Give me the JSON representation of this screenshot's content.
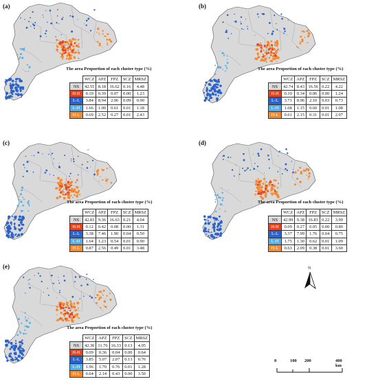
{
  "title": "The area Proportion of each cluster type (%)",
  "columns": [
    "WCZ",
    "APZ",
    "FPZ",
    "SCZ",
    "MRSZ"
  ],
  "colors": {
    "NS": "#d9d9d9",
    "H-H": "#e8451f",
    "L-L": "#2c63c9",
    "L-H": "#58aee6",
    "H-L": "#f78a2a",
    "boundary": "#9a9a9a"
  },
  "panels": [
    {
      "label": "(a)",
      "rows": [
        {
          "type": "NS",
          "values": [
            "42.55",
            "8.18",
            "16.62",
            "0.16",
            "4.48"
          ]
        },
        {
          "type": "H-H",
          "values": [
            "0.10",
            "0.39",
            "0.07",
            "0.00",
            "1.23"
          ]
        },
        {
          "type": "L-L",
          "values": [
            "3.84",
            "8.94",
            "2.06",
            "0.09",
            "0.90"
          ]
        },
        {
          "type": "L-H",
          "values": [
            "1.66",
            "1.00",
            "0.61",
            "0.01",
            "1.18"
          ]
        },
        {
          "type": "H-L",
          "values": [
            "0.69",
            "2.52",
            "0.27",
            "0.01",
            "2.43"
          ]
        }
      ]
    },
    {
      "label": "(b)",
      "rows": [
        {
          "type": "NS",
          "values": [
            "42.74",
            "8.43",
            "16.56",
            "0.22",
            "4.22"
          ]
        },
        {
          "type": "H-H",
          "values": [
            "0.10",
            "0.34",
            "0.06",
            "0.00",
            "1.24"
          ]
        },
        {
          "type": "L-L",
          "values": [
            "3.71",
            "8.96",
            "2.10",
            "0.03",
            "0.73"
          ]
        },
        {
          "type": "L-H",
          "values": [
            "1.68",
            "1.15",
            "0.60",
            "0.01",
            "1.08"
          ]
        },
        {
          "type": "H-L",
          "values": [
            "0.61",
            "2.15",
            "0.31",
            "0.01",
            "2.97"
          ]
        }
      ]
    },
    {
      "label": "(c)",
      "rows": [
        {
          "type": "NS",
          "values": [
            "42.83",
            "9.36",
            "16.63",
            "0.21",
            "4.04"
          ]
        },
        {
          "type": "H-H",
          "values": [
            "0.12",
            "0.42",
            "0.08",
            "0.00",
            "1.31"
          ]
        },
        {
          "type": "L-L",
          "values": [
            "3.38",
            "7.46",
            "1.90",
            "0.04",
            "0.50"
          ]
        },
        {
          "type": "L-H",
          "values": [
            "1.64",
            "1.23",
            "0.54",
            "0.01",
            "0.90"
          ]
        },
        {
          "type": "H-L",
          "values": [
            "0.87",
            "2.56",
            "0.49",
            "0.01",
            "3.48"
          ]
        }
      ]
    },
    {
      "label": "(d)",
      "rows": [
        {
          "type": "NS",
          "values": [
            "42.99",
            "9.38",
            "16.83",
            "0.22",
            "3.99"
          ]
        },
        {
          "type": "H-H",
          "values": [
            "0.09",
            "0.27",
            "0.05",
            "0.00",
            "0.80"
          ]
        },
        {
          "type": "L-L",
          "values": [
            "3.37",
            "7.99",
            "1.76",
            "0.04",
            "0.75"
          ]
        },
        {
          "type": "L-H",
          "values": [
            "1.75",
            "1.30",
            "0.62",
            "0.01",
            "1.09"
          ]
        },
        {
          "type": "H-L",
          "values": [
            "0.63",
            "2.09",
            "0.38",
            "0.01",
            "3.60"
          ]
        }
      ]
    },
    {
      "label": "(e)",
      "rows": [
        {
          "type": "NS",
          "values": [
            "42.30",
            "11.76",
            "16.33",
            "0.13",
            "4.05"
          ]
        },
        {
          "type": "H-H",
          "values": [
            "0.09",
            "0.36",
            "0.04",
            "0.00",
            "0.64"
          ]
        },
        {
          "type": "L-L",
          "values": [
            "3.85",
            "5.07",
            "2.07",
            "0.13",
            "0.76"
          ]
        },
        {
          "type": "L-H",
          "values": [
            "1.96",
            "1.70",
            "0.76",
            "0.01",
            "1.28"
          ]
        },
        {
          "type": "H-L",
          "values": [
            "0.64",
            "2.14",
            "0.43",
            "0.00",
            "3.50"
          ]
        }
      ]
    }
  ],
  "legend": {
    "north": "N",
    "scale_ticks": [
      "0",
      "100",
      "200",
      "400 km"
    ]
  }
}
